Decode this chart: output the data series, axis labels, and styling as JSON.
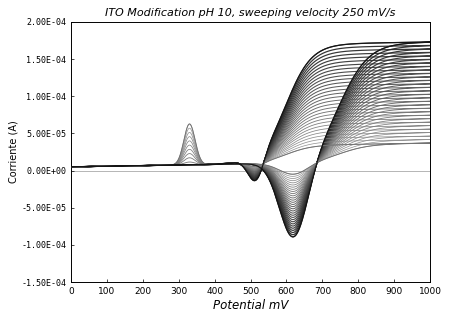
{
  "title": "ITO Modification pH 10, sweeping velocity 250 mV/s",
  "xlabel": "Potential mV",
  "ylabel": "Corriente (A)",
  "xlim": [
    0,
    1000
  ],
  "ylim": [
    -0.00015,
    0.0002
  ],
  "yticks": [
    -0.00015,
    -0.0001,
    -5e-05,
    0.0,
    5e-05,
    0.0001,
    0.00015,
    0.0002
  ],
  "ytick_labels": [
    "-1.50E-04",
    "-1.00E-04",
    "-5.00E-05",
    "0.00E+00",
    "5.00E-05",
    "1.00E-04",
    "1.50E-04",
    "2.00E-04"
  ],
  "xticks": [
    0,
    100,
    200,
    300,
    400,
    500,
    600,
    700,
    800,
    900,
    1000
  ],
  "num_cycles": 30
}
